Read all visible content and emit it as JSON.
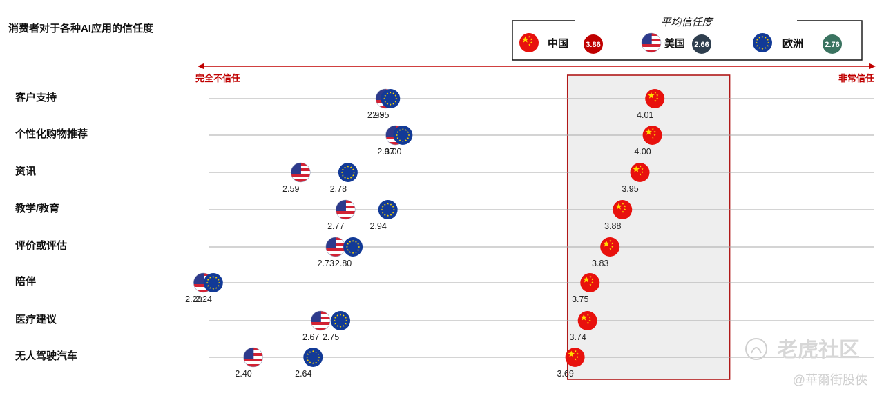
{
  "title": "消费者对于各种AI应用的信任度",
  "watermark": {
    "main": "老虎社区",
    "sub": "@華爾街股俠"
  },
  "chart_data": {
    "type": "scatter",
    "title": "消费者对于各种AI应用的信任度",
    "axis": {
      "min_label": "完全不信任",
      "max_label": "非常信任",
      "xlim": [
        2.0,
        4.3
      ]
    },
    "legend": {
      "title": "平均信任度",
      "placement": "top-right",
      "items": [
        {
          "name": "中国",
          "average": "3.86",
          "color": "#c00000",
          "icon": "china-flag-icon"
        },
        {
          "name": "美国",
          "average": "2.66",
          "color": "#2f3f4f",
          "icon": "usa-flag-icon"
        },
        {
          "name": "欧洲",
          "average": "2.76",
          "color": "#3a7360",
          "icon": "eu-flag-icon"
        }
      ]
    },
    "categories": [
      "客户支持",
      "个性化购物推荐",
      "资讯",
      "教学/教育",
      "评价或评估",
      "陪伴",
      "医疗建议",
      "无人驾驶汽车"
    ],
    "series": [
      {
        "name": "美国",
        "flag": "usa",
        "values": [
          "2.93",
          "2.97",
          "2.59",
          "2.77",
          "2.73",
          "2.20",
          "2.67",
          "2.40"
        ]
      },
      {
        "name": "欧洲",
        "flag": "eu",
        "values": [
          "2.95",
          "3.00",
          "2.78",
          "2.94",
          "2.80",
          "2.24",
          "2.75",
          "2.64"
        ]
      },
      {
        "name": "中国",
        "flag": "china",
        "values": [
          "4.01",
          "4.00",
          "3.95",
          "3.88",
          "3.83",
          "3.75",
          "3.74",
          "3.69"
        ]
      }
    ],
    "highlight_range": [
      3.66,
      4.31
    ]
  }
}
